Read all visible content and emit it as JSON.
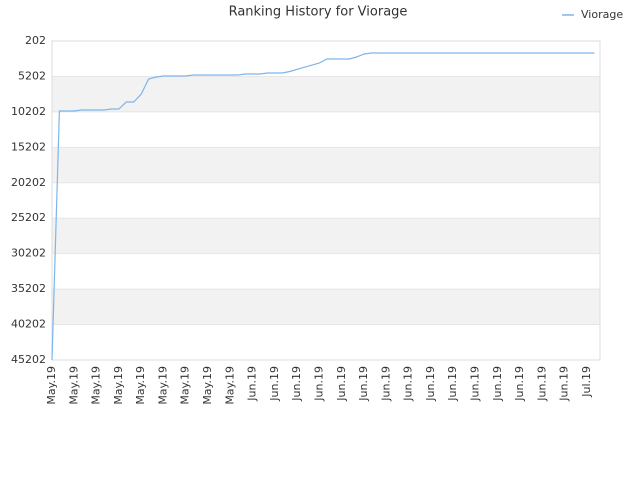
{
  "chart_data": {
    "type": "line",
    "title": "Ranking History for Viorage",
    "categories": [
      "May.19",
      null,
      null,
      "May.19",
      null,
      null,
      "May.19",
      null,
      null,
      "May.19",
      null,
      null,
      "May.19",
      null,
      null,
      "May.19",
      null,
      null,
      "May.19",
      null,
      null,
      "May.19",
      null,
      null,
      "May.19",
      null,
      null,
      "Jun.19",
      null,
      null,
      "Jun.19",
      null,
      null,
      "Jun.19",
      null,
      null,
      "Jun.19",
      null,
      null,
      "Jun.19",
      null,
      null,
      "Jun.19",
      null,
      null,
      "Jun.19",
      null,
      null,
      "Jun.19",
      null,
      null,
      "Jun.19",
      null,
      null,
      "Jun.19",
      null,
      null,
      "Jun.19",
      null,
      null,
      "Jun.19",
      null,
      null,
      "Jun.19",
      null,
      null,
      "Jun.19",
      null,
      null,
      "Jun.19",
      null,
      null,
      "Jul.19",
      null
    ],
    "series": [
      {
        "name": "Viorage",
        "color": "#7cb5ec",
        "values": [
          45202,
          10080,
          10080,
          10080,
          9930,
          9930,
          9930,
          9930,
          9800,
          9800,
          8800,
          8800,
          7700,
          5560,
          5300,
          5140,
          5140,
          5140,
          5140,
          5000,
          5000,
          5000,
          5000,
          5000,
          5000,
          5000,
          4860,
          4860,
          4860,
          4710,
          4710,
          4710,
          4500,
          4200,
          3900,
          3600,
          3300,
          2740,
          2740,
          2740,
          2740,
          2460,
          2040,
          1900,
          1900,
          1900,
          1900,
          1900,
          1900,
          1900,
          1900,
          1900,
          1900,
          1900,
          1900,
          1900,
          1900,
          1900,
          1900,
          1900,
          1900,
          1900,
          1900,
          1900,
          1900,
          1900,
          1900,
          1900,
          1900,
          1900,
          1900,
          1900,
          1900,
          1900
        ]
      }
    ],
    "ylim": [
      45202,
      202
    ],
    "yticks": [
      202,
      5202,
      10202,
      15202,
      20202,
      25202,
      30202,
      35202,
      40202,
      45202
    ],
    "grid": true,
    "legend": "top-right"
  }
}
